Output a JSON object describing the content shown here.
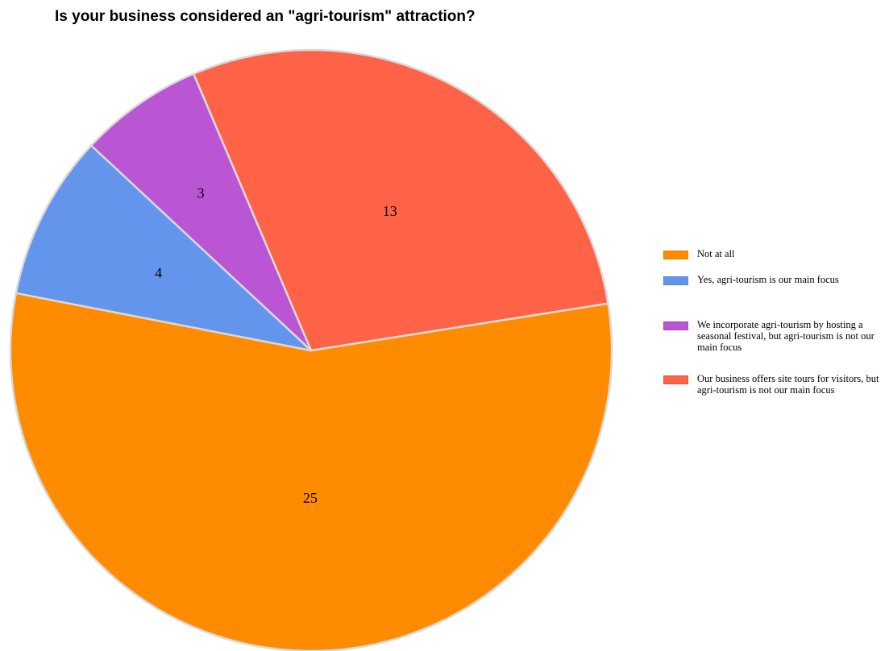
{
  "chart_data": {
    "type": "pie",
    "title": "Is your business considered an \"agri-tourism\" attraction?",
    "slices": [
      {
        "label": " Not at all",
        "value": 25,
        "color": "#FF8C00"
      },
      {
        "label": "Yes, agri-tourism is our main focus",
        "value": 4,
        "color": "#6495ED"
      },
      {
        "label": "We incorporate agri-tourism by hosting a seasonal festival, but agri-tourism is not our main focus",
        "value": 3,
        "color": "#BA55D3"
      },
      {
        "label": "Our business offers site tours for visitors, but agri-tourism is not our main focus",
        "value": 13,
        "color": "#FF6347"
      }
    ],
    "legend_position": "right",
    "slice_border_color": "#D9D9D9"
  }
}
